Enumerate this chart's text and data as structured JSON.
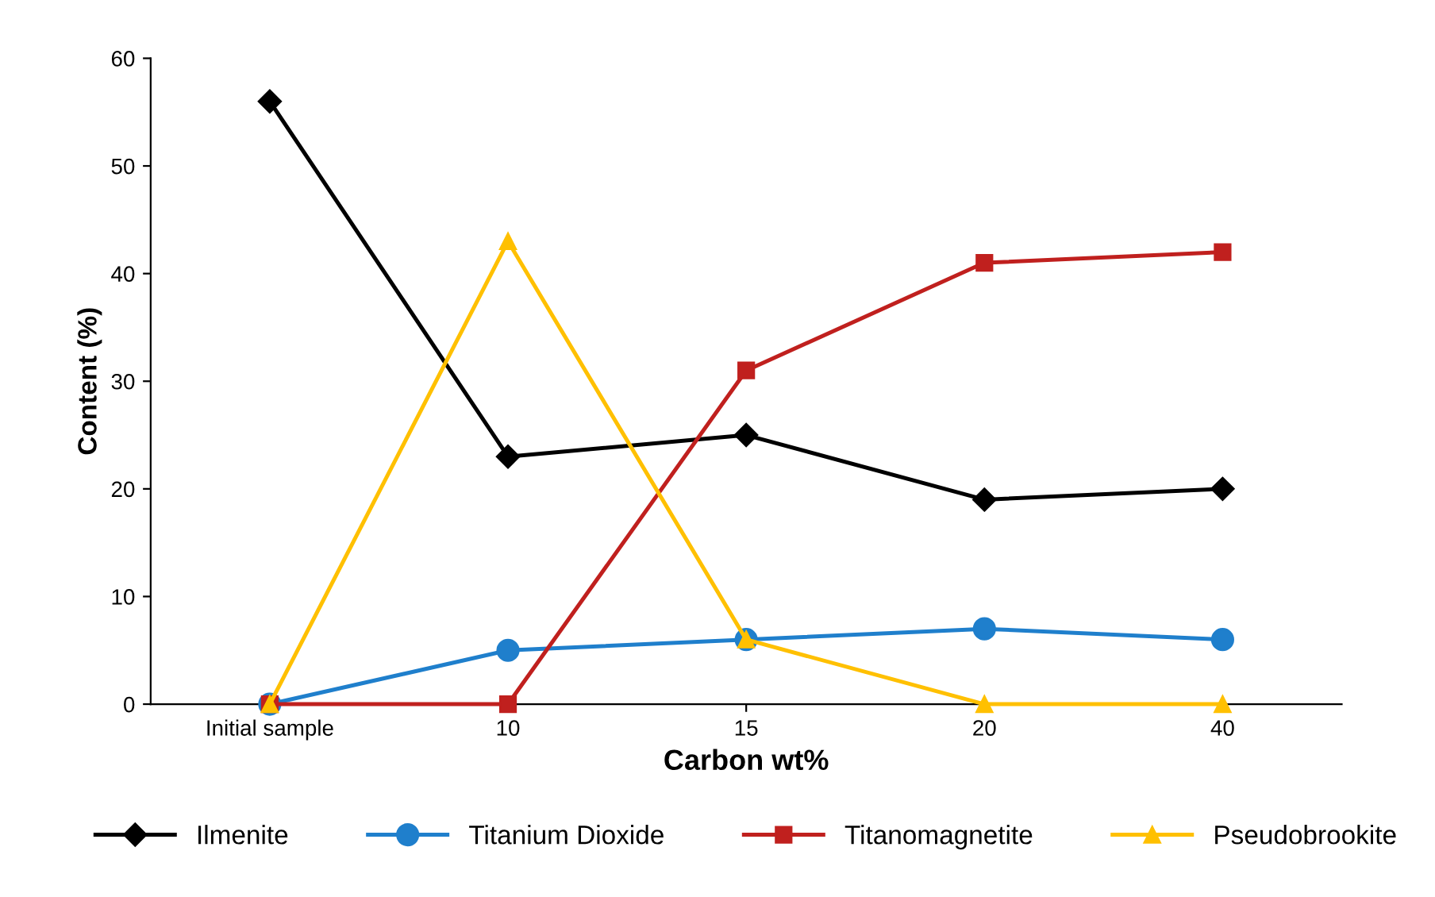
{
  "chart_data": {
    "type": "line",
    "xlabel": "Carbon wt%",
    "ylabel": "Content (%)",
    "categories": [
      "Initial sample",
      "10",
      "15",
      "20",
      "40"
    ],
    "ylim": [
      0,
      60
    ],
    "yticks": [
      0,
      10,
      20,
      30,
      40,
      50,
      60
    ],
    "grid": false,
    "legend": "bottom",
    "line_style": "solid",
    "series": [
      {
        "name": "Ilmenite",
        "color": "#000000",
        "marker": "diamond",
        "values": [
          56,
          23,
          25,
          19,
          20
        ]
      },
      {
        "name": "Titanium Dioxide",
        "color": "#1f7fcc",
        "marker": "circle",
        "values": [
          0,
          5,
          6,
          7,
          6
        ]
      },
      {
        "name": "Titanomagnetite",
        "color": "#c0201e",
        "marker": "square",
        "values": [
          0,
          0,
          31,
          41,
          42
        ]
      },
      {
        "name": "Pseudobrookite",
        "color": "#ffc000",
        "marker": "triangle",
        "values": [
          0,
          43,
          6,
          0,
          0
        ]
      }
    ]
  }
}
